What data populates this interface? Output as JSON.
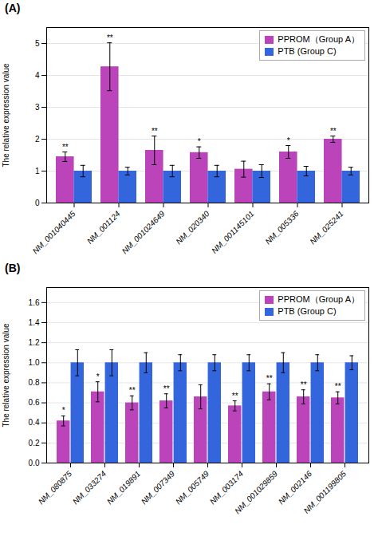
{
  "chart_data": [
    {
      "type": "bar",
      "title": "(A)",
      "categories": [
        "NM_001040445",
        "NM_001124",
        "NM_001024649",
        "NM_020340",
        "NM_001145101",
        "NM_005336",
        "NM_025241"
      ],
      "series": [
        {
          "name": "PPROM（Group A）",
          "color": "#BB44BB",
          "values": [
            1.45,
            4.27,
            1.65,
            1.58,
            1.06,
            1.6,
            2.0
          ],
          "errors": [
            0.15,
            0.75,
            0.45,
            0.18,
            0.25,
            0.2,
            0.1
          ],
          "significance": [
            "**",
            "**",
            "**",
            "*",
            null,
            "*",
            "**"
          ]
        },
        {
          "name": "PTB (Group C)",
          "color": "#3366DD",
          "values": [
            1.0,
            1.0,
            1.0,
            1.0,
            1.0,
            1.0,
            1.0
          ],
          "errors": [
            0.18,
            0.12,
            0.18,
            0.18,
            0.2,
            0.15,
            0.12
          ]
        }
      ],
      "ylabel": "The relative expression value",
      "ylim": [
        0,
        5.5
      ],
      "yticks": [
        0,
        1,
        2,
        3,
        4,
        5
      ],
      "grid": true,
      "legend": "upper right"
    },
    {
      "type": "bar",
      "title": "(B)",
      "categories": [
        "NM_080875",
        "NM_033274",
        "NM_019891",
        "NM_007349",
        "NM_005749",
        "NM_003174",
        "NM_001029859",
        "NM_002146",
        "NM_001199805"
      ],
      "series": [
        {
          "name": "PPROM（Group A）",
          "color": "#BB44BB",
          "values": [
            0.42,
            0.71,
            0.6,
            0.62,
            0.66,
            0.57,
            0.71,
            0.66,
            0.65
          ],
          "errors": [
            0.05,
            0.1,
            0.07,
            0.07,
            0.12,
            0.05,
            0.08,
            0.07,
            0.06
          ],
          "significance": [
            "*",
            "*",
            "**",
            "**",
            null,
            "**",
            "**",
            "**",
            "**"
          ]
        },
        {
          "name": "PTB (Group C)",
          "color": "#3366DD",
          "values": [
            1.0,
            1.0,
            1.0,
            1.0,
            1.0,
            1.0,
            1.0,
            1.0,
            1.0
          ],
          "errors": [
            0.13,
            0.13,
            0.1,
            0.08,
            0.08,
            0.08,
            0.1,
            0.08,
            0.07
          ]
        }
      ],
      "ylabel": "The relative expression value",
      "ylim": [
        0,
        1.75
      ],
      "yticks": [
        {
          "value": 0,
          "label": "0.0"
        },
        0.2,
        0.4,
        0.6,
        0.8,
        {
          "value": 1,
          "label": "1.0"
        },
        1.2,
        1.4,
        1.6
      ],
      "grid": true,
      "legend": "upper right"
    }
  ]
}
